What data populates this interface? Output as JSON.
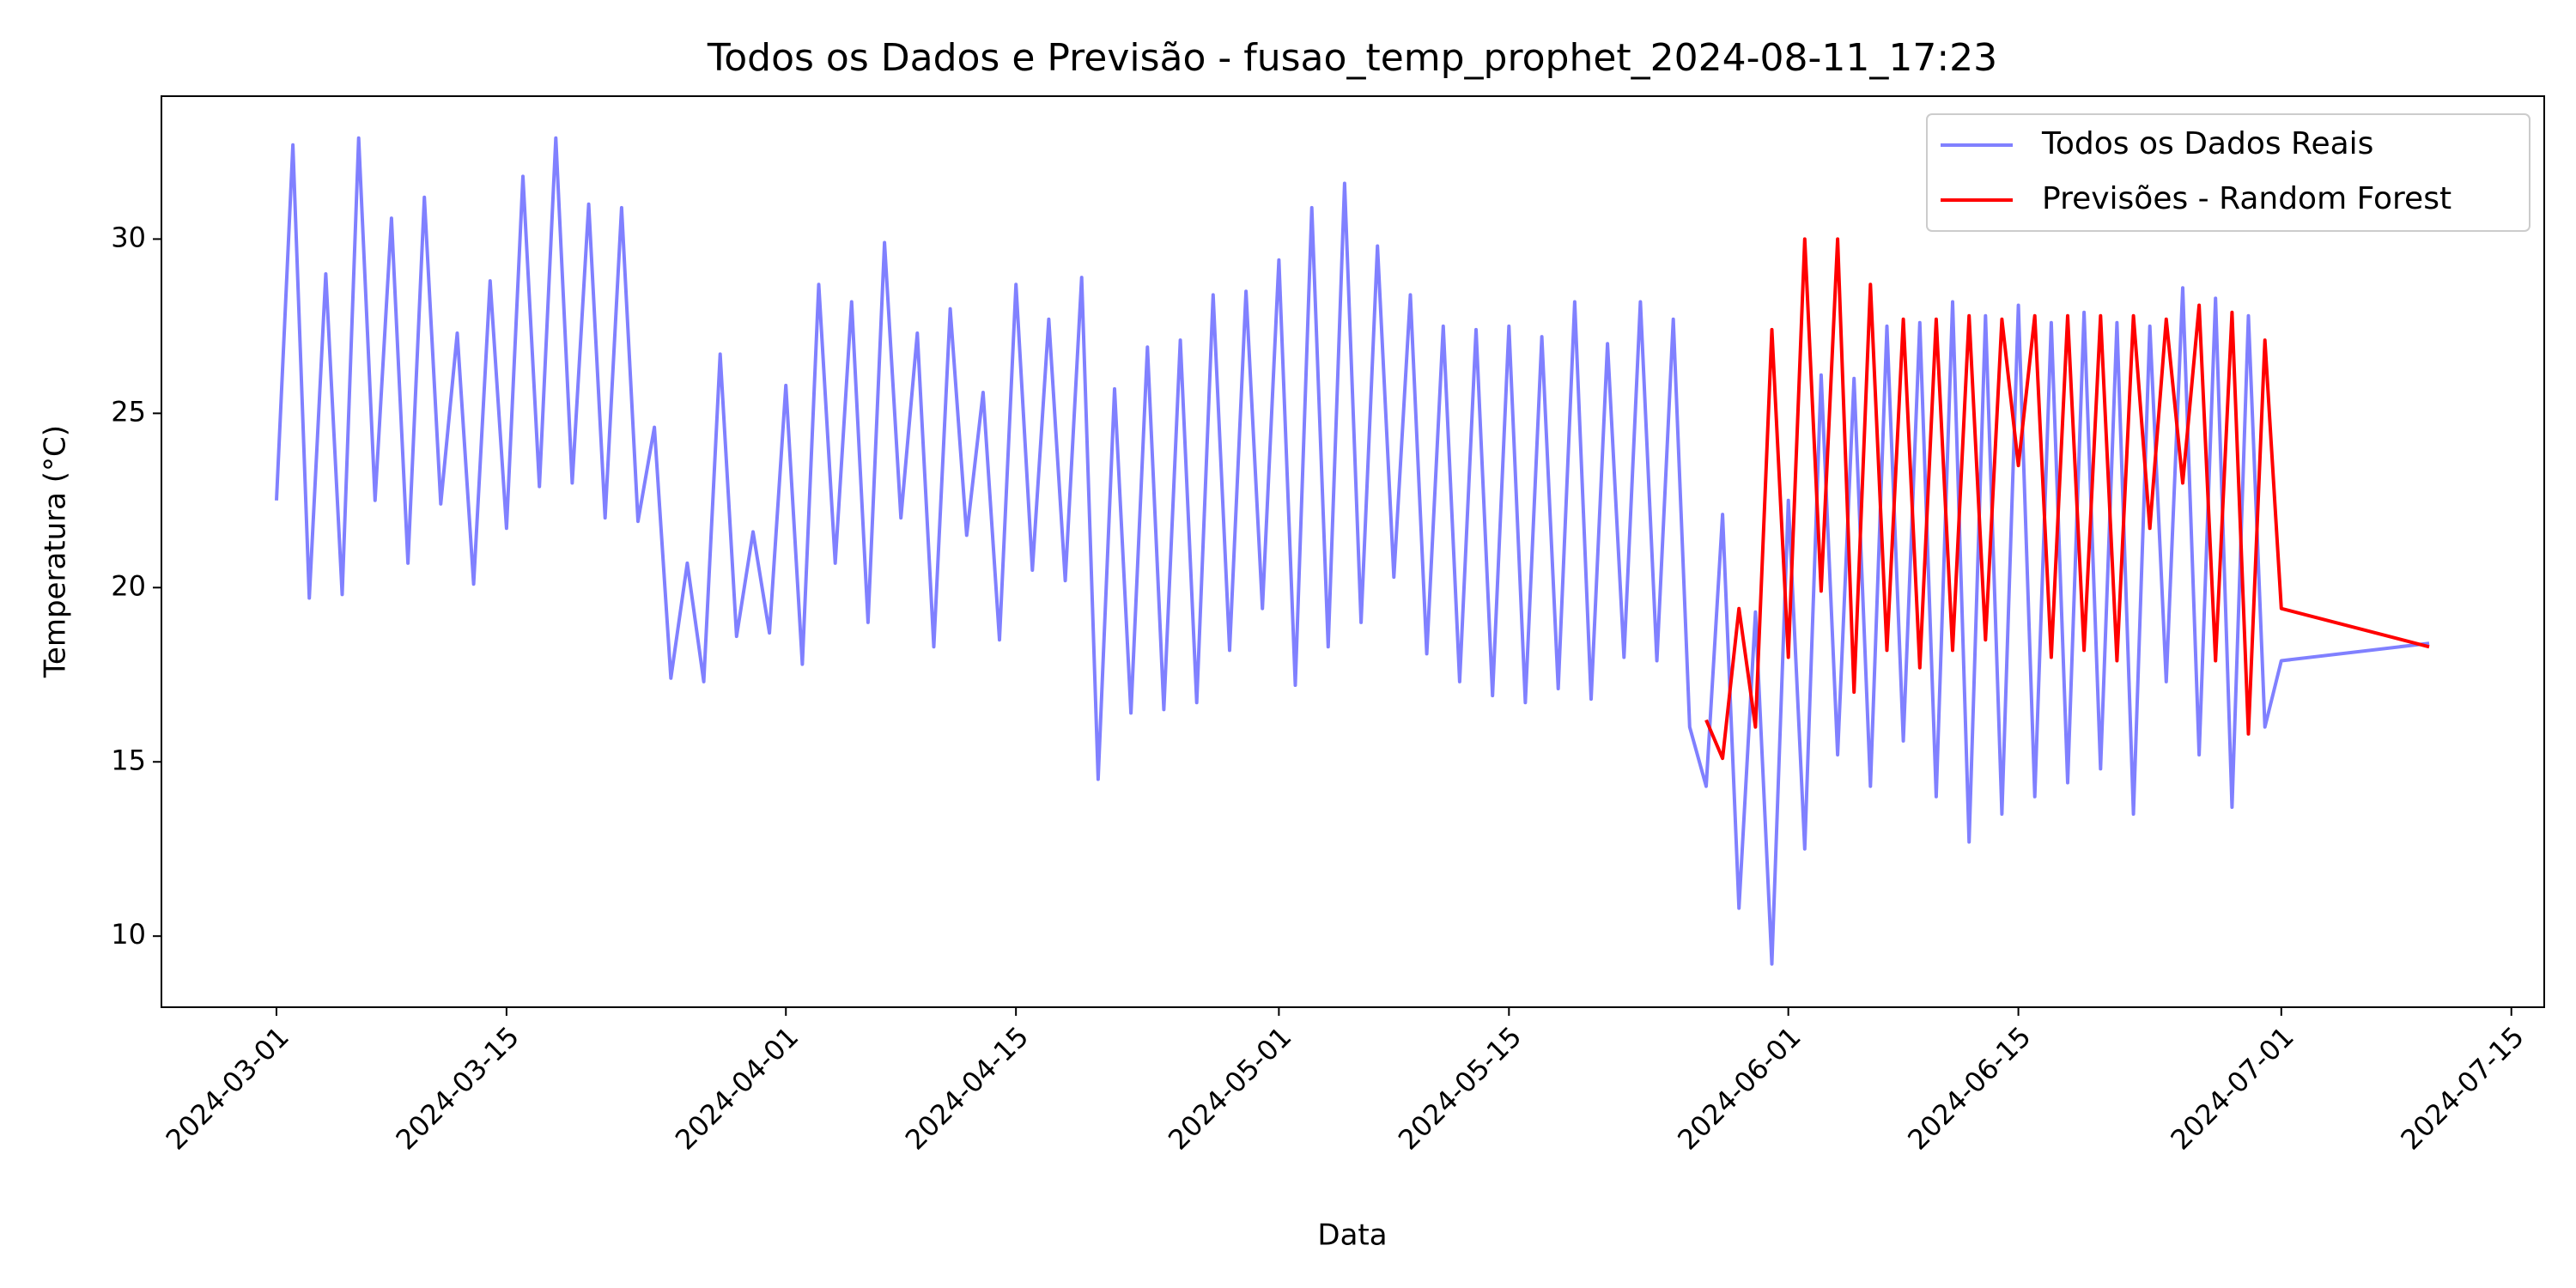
{
  "chart_data": {
    "type": "line",
    "title": "Todos os Dados e Previsão - fusao_temp_prophet_2024-08-11_17:23",
    "x_label": "Data",
    "y_label": "Temperatura (°C)",
    "xlim": [
      "2024-02-23",
      "2024-07-17"
    ],
    "xticks": [
      "2024-03-01",
      "2024-03-15",
      "2024-04-01",
      "2024-04-15",
      "2024-05-01",
      "2024-05-15",
      "2024-06-01",
      "2024-06-15",
      "2024-07-01",
      "2024-07-15"
    ],
    "ylim": [
      7.96,
      34.1
    ],
    "yticks": [
      10,
      15,
      20,
      25,
      30
    ],
    "legend": "upper right",
    "series": [
      {
        "name": "Todos os Dados Reais",
        "color": "#8080ff",
        "x": [
          "2024-03-01",
          "2024-03-02",
          "2024-03-03",
          "2024-03-04",
          "2024-03-05",
          "2024-03-06",
          "2024-03-07",
          "2024-03-08",
          "2024-03-09",
          "2024-03-10",
          "2024-03-11",
          "2024-03-12",
          "2024-03-13",
          "2024-03-14",
          "2024-03-15",
          "2024-03-16",
          "2024-03-17",
          "2024-03-18",
          "2024-03-19",
          "2024-03-20",
          "2024-03-21",
          "2024-03-22",
          "2024-03-23",
          "2024-03-24",
          "2024-03-25",
          "2024-03-26",
          "2024-03-27",
          "2024-03-28",
          "2024-03-29",
          "2024-03-30",
          "2024-03-31",
          "2024-04-01",
          "2024-04-02",
          "2024-04-03",
          "2024-04-04",
          "2024-04-05",
          "2024-04-06",
          "2024-04-07",
          "2024-04-08",
          "2024-04-09",
          "2024-04-10",
          "2024-04-11",
          "2024-04-12",
          "2024-04-13",
          "2024-04-14",
          "2024-04-15",
          "2024-04-16",
          "2024-04-17",
          "2024-04-18",
          "2024-04-19",
          "2024-04-20",
          "2024-04-21",
          "2024-04-22",
          "2024-04-23",
          "2024-04-24",
          "2024-04-25",
          "2024-04-26",
          "2024-04-27",
          "2024-04-28",
          "2024-04-29",
          "2024-04-30",
          "2024-05-01",
          "2024-05-02",
          "2024-05-03",
          "2024-05-04",
          "2024-05-05",
          "2024-05-06",
          "2024-05-07",
          "2024-05-08",
          "2024-05-09",
          "2024-05-10",
          "2024-05-11",
          "2024-05-12",
          "2024-05-13",
          "2024-05-14",
          "2024-05-15",
          "2024-05-16",
          "2024-05-17",
          "2024-05-18",
          "2024-05-19",
          "2024-05-20",
          "2024-05-21",
          "2024-05-22",
          "2024-05-23",
          "2024-05-24",
          "2024-05-25",
          "2024-05-26",
          "2024-05-27",
          "2024-05-28",
          "2024-05-29",
          "2024-05-30",
          "2024-05-31",
          "2024-06-01",
          "2024-06-02",
          "2024-06-03",
          "2024-06-04",
          "2024-06-05",
          "2024-06-06",
          "2024-06-07",
          "2024-06-08",
          "2024-06-09",
          "2024-06-10",
          "2024-06-11",
          "2024-06-12",
          "2024-06-13",
          "2024-06-14",
          "2024-06-15",
          "2024-06-16",
          "2024-06-17",
          "2024-06-18",
          "2024-06-19",
          "2024-06-20",
          "2024-06-21",
          "2024-06-22",
          "2024-06-23",
          "2024-06-24",
          "2024-06-25",
          "2024-06-26",
          "2024-06-27",
          "2024-06-28",
          "2024-06-29",
          "2024-06-30",
          "2024-07-01",
          "2024-07-10"
        ],
        "values": [
          22.5,
          32.7,
          19.7,
          29,
          19.8,
          32.9,
          22.5,
          30.6,
          20.7,
          31.2,
          22.4,
          27.3,
          20.1,
          28.8,
          21.7,
          31.8,
          22.9,
          32.9,
          23,
          31,
          22,
          30.9,
          21.9,
          24.6,
          17.4,
          20.7,
          17.3,
          26.7,
          18.6,
          21.6,
          18.7,
          25.8,
          17.8,
          28.7,
          20.7,
          28.2,
          19.0,
          29.9,
          22.0,
          27.3,
          18.3,
          28.0,
          21.5,
          25.6,
          18.5,
          28.7,
          20.5,
          27.7,
          20.2,
          28.9,
          14.5,
          25.7,
          16.4,
          26.9,
          16.5,
          27.1,
          16.7,
          28.4,
          18.2,
          28.5,
          19.4,
          29.4,
          17.2,
          30.9,
          18.3,
          31.6,
          19.0,
          29.8,
          20.3,
          28.4,
          18.1,
          27.5,
          17.3,
          27.4,
          16.9,
          27.5,
          16.7,
          27.2,
          17.1,
          28.2,
          16.8,
          27.0,
          18.0,
          28.2,
          17.9,
          27.7,
          16.0,
          14.3,
          22.1,
          10.8,
          19.3,
          9.2,
          22.5,
          12.5,
          26.1,
          15.2,
          26.0,
          14.3,
          27.5,
          15.6,
          27.6,
          14.0,
          28.2,
          12.7,
          27.8,
          13.5,
          28.1,
          14.0,
          27.6,
          14.4,
          27.9,
          14.8,
          27.6,
          13.5,
          27.5,
          17.3,
          28.6,
          15.2,
          28.3,
          13.7,
          27.8,
          16.0,
          17.9,
          18.4
        ]
      },
      {
        "name": "Previsões - Random Forest",
        "color": "#ff0000",
        "x": [
          "2024-05-27",
          "2024-05-28",
          "2024-05-29",
          "2024-05-30",
          "2024-05-31",
          "2024-06-01",
          "2024-06-02",
          "2024-06-03",
          "2024-06-04",
          "2024-06-05",
          "2024-06-06",
          "2024-06-07",
          "2024-06-08",
          "2024-06-09",
          "2024-06-10",
          "2024-06-11",
          "2024-06-12",
          "2024-06-13",
          "2024-06-14",
          "2024-06-15",
          "2024-06-16",
          "2024-06-17",
          "2024-06-18",
          "2024-06-19",
          "2024-06-20",
          "2024-06-21",
          "2024-06-22",
          "2024-06-23",
          "2024-06-24",
          "2024-06-25",
          "2024-06-26",
          "2024-06-27",
          "2024-06-28",
          "2024-06-29",
          "2024-06-30",
          "2024-07-01",
          "2024-07-10"
        ],
        "values": [
          16.2,
          15.1,
          19.4,
          16.0,
          27.4,
          18.0,
          30.0,
          19.9,
          30.0,
          17.0,
          28.7,
          18.2,
          27.7,
          17.7,
          27.7,
          18.2,
          27.8,
          18.5,
          27.7,
          23.5,
          27.8,
          18.0,
          27.8,
          18.2,
          27.8,
          17.9,
          27.8,
          21.7,
          27.7,
          23.0,
          28.1,
          17.9,
          27.9,
          15.8,
          27.1,
          19.4,
          18.3
        ]
      }
    ]
  }
}
